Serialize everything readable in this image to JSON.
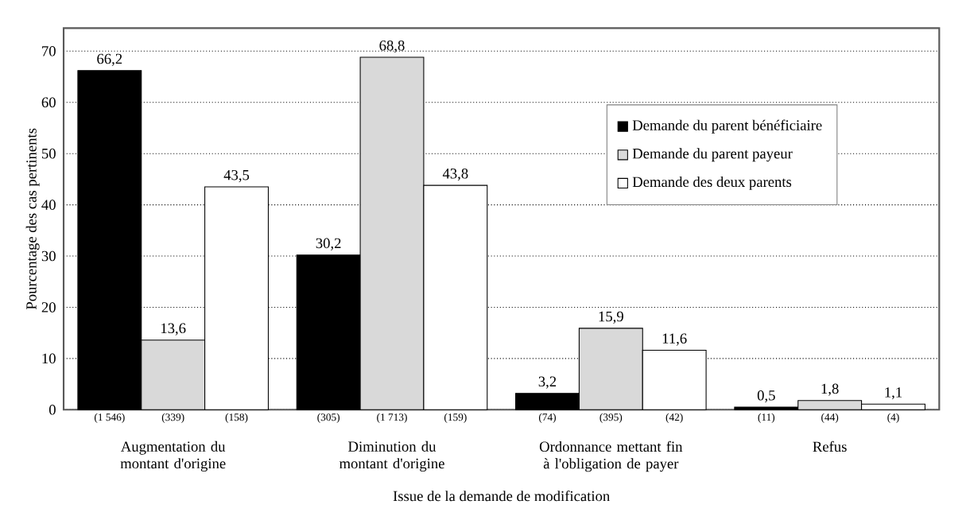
{
  "chart_data": {
    "type": "bar",
    "xlabel": "Issue de la demande de modification",
    "ylabel": "Pourcentage des cas pertinents",
    "categories": [
      "Augmentation du montant d'origine",
      "Diminution du montant d'origine",
      "Ordonnance mettant fin à l'obligation de payer",
      "Refus"
    ],
    "series": [
      {
        "name": "Demande du parent bénéficiaire",
        "color": "#000000",
        "values": [
          66.2,
          30.2,
          3.2,
          0.5
        ],
        "value_labels": [
          "66,2",
          "30,2",
          "3,2",
          "0,5"
        ]
      },
      {
        "name": "Demande du parent payeur",
        "color": "#d9d9d9",
        "values": [
          13.6,
          68.8,
          15.9,
          1.8
        ],
        "value_labels": [
          "13,6",
          "68,8",
          "15,9",
          "1,8"
        ]
      },
      {
        "name": "Demande des deux parents",
        "color": "#ffffff",
        "values": [
          43.5,
          43.8,
          11.6,
          1.1
        ],
        "value_labels": [
          "43,5",
          "43,8",
          "11,6",
          "1,1"
        ]
      }
    ],
    "annotations": [
      "(1 546)",
      "(339)",
      "(158)",
      "(305)",
      "(1 713)",
      "(159)",
      "(74)",
      "(395)",
      "(42)",
      "(11)",
      "(44)",
      "(4)"
    ],
    "ylim": [
      0,
      74.5
    ],
    "yticks": [
      0,
      10,
      20,
      30,
      40,
      50,
      60,
      70
    ],
    "grid": "y",
    "legend": "top right"
  }
}
